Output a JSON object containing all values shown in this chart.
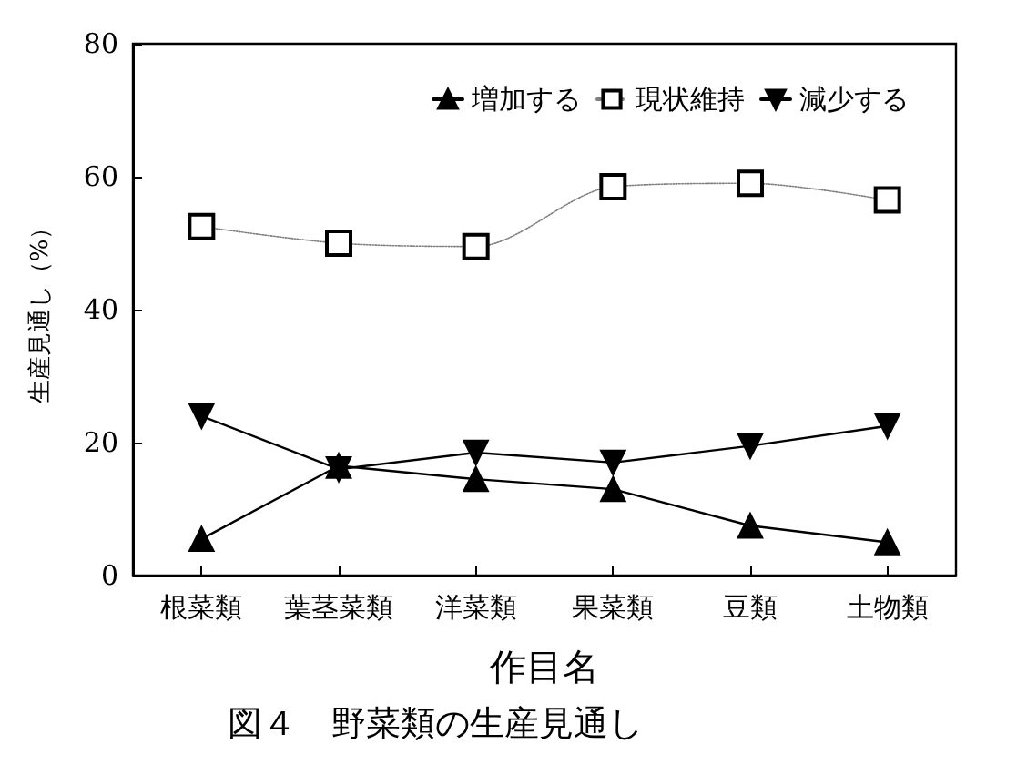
{
  "chart_data": {
    "type": "line",
    "title": "図４　野菜類の生産見通し",
    "xlabel": "作目名",
    "ylabel": "生産見通し（%）",
    "categories": [
      "根菜類",
      "葉茎菜類",
      "洋菜類",
      "果菜類",
      "豆類",
      "土物類"
    ],
    "series": [
      {
        "name": "増加する",
        "color": "#000000",
        "marker": "triangle",
        "line_style": "solid",
        "values": [
          5.5,
          16.5,
          14.5,
          13,
          7.5,
          5
        ]
      },
      {
        "name": "現状維持",
        "color": "#000000",
        "marker": "square",
        "line_style": "dotted",
        "values": [
          52.5,
          50,
          49.5,
          58.5,
          59,
          56.5
        ]
      },
      {
        "name": "減少する",
        "color": "#000000",
        "marker": "triangle-down",
        "line_style": "solid",
        "values": [
          24,
          16,
          18.5,
          17,
          19.5,
          22.5
        ]
      }
    ],
    "ylim": [
      0,
      80
    ],
    "yticks": [
      0,
      20,
      40,
      60,
      80
    ],
    "grid": false,
    "legend": "top right"
  }
}
